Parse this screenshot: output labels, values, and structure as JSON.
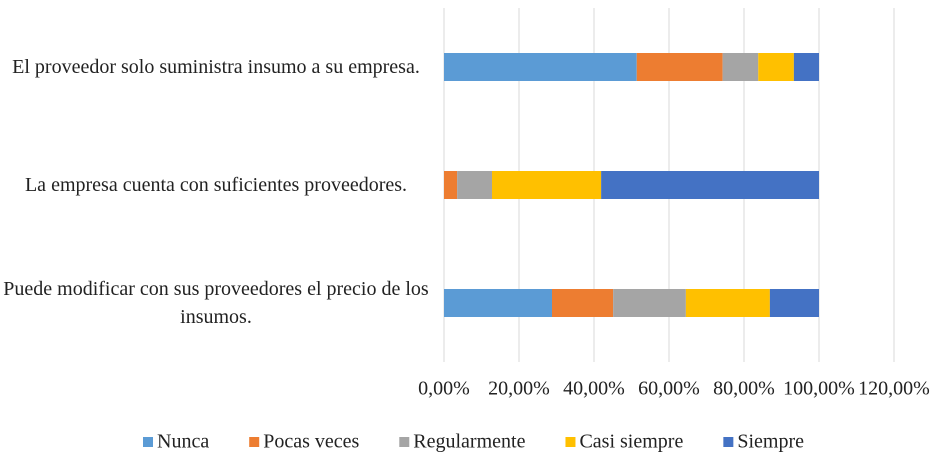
{
  "chart_data": {
    "type": "bar",
    "orientation": "horizontal",
    "stacked": true,
    "categories": [
      "El proveedor solo suministra insumo a su empresa.",
      "La empresa cuenta con suficientes proveedores.",
      "Puede modificar con sus proveedores el precio de los insumos."
    ],
    "series": [
      {
        "name": "Nunca",
        "color": "#5b9bd5",
        "values": [
          51.4,
          0,
          28.8
        ]
      },
      {
        "name": "Pocas veces",
        "color": "#ed7d31",
        "values": [
          22.9,
          3.5,
          16.3
        ]
      },
      {
        "name": "Regularmente",
        "color": "#a5a5a5",
        "values": [
          9.5,
          9.3,
          19.4
        ]
      },
      {
        "name": "Casi siempre",
        "color": "#ffc000",
        "values": [
          9.5,
          29.1,
          22.4
        ]
      },
      {
        "name": "Siempre",
        "color": "#4472c4",
        "values": [
          6.7,
          58.1,
          13.1
        ]
      }
    ],
    "xlim": [
      0,
      120
    ],
    "xticks": [
      {
        "value": 0,
        "label": "0,00%"
      },
      {
        "value": 20,
        "label": "20,00%"
      },
      {
        "value": 40,
        "label": "40,00%"
      },
      {
        "value": 60,
        "label": "60,00%"
      },
      {
        "value": 80,
        "label": "80,00%"
      },
      {
        "value": 100,
        "label": "100,00%"
      },
      {
        "value": 120,
        "label": "120,00%"
      }
    ],
    "grid": true,
    "legend": "bottom"
  }
}
